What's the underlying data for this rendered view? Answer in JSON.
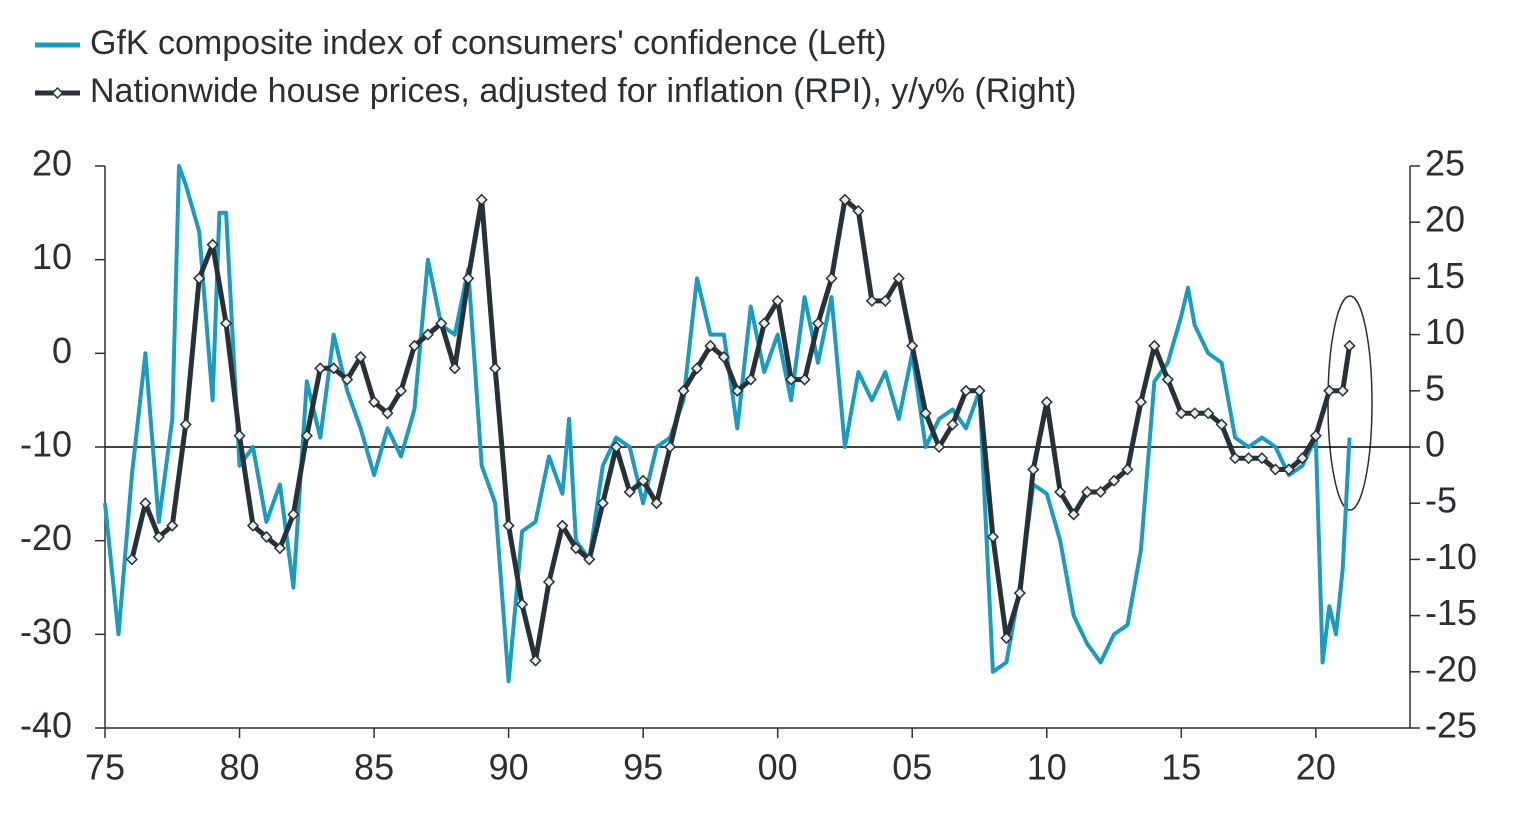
{
  "chart_data": {
    "type": "line",
    "xlim": [
      1975,
      2023.5
    ],
    "xticks": [
      {
        "value": 1975,
        "label": "75"
      },
      {
        "value": 1980,
        "label": "80"
      },
      {
        "value": 1985,
        "label": "85"
      },
      {
        "value": 1990,
        "label": "90"
      },
      {
        "value": 1995,
        "label": "95"
      },
      {
        "value": 2000,
        "label": "00"
      },
      {
        "value": 2005,
        "label": "05"
      },
      {
        "value": 2010,
        "label": "10"
      },
      {
        "value": 2015,
        "label": "15"
      },
      {
        "value": 2020,
        "label": "20"
      }
    ],
    "ylim": [
      -40,
      20
    ],
    "yticks": [
      -40,
      -30,
      -20,
      -10,
      0,
      10,
      20
    ],
    "y2lim": [
      -25,
      25
    ],
    "y2ticks": [
      -25,
      -20,
      -15,
      -10,
      -5,
      0,
      5,
      10,
      15,
      20,
      25
    ],
    "series": [
      {
        "name": "GfK composite index of consumers' confidence (Left)",
        "color": "#1a9bc0",
        "axis": "y",
        "x": [
          1975,
          1975.5,
          1976,
          1976.5,
          1977,
          1977.5,
          1977.75,
          1978,
          1978.5,
          1979,
          1979.25,
          1979.5,
          1980,
          1980.5,
          1981,
          1981.5,
          1982,
          1982.5,
          1983,
          1983.5,
          1984,
          1984.5,
          1985,
          1985.5,
          1986,
          1986.5,
          1987,
          1987.5,
          1988,
          1988.5,
          1989,
          1989.5,
          1990,
          1990.5,
          1991,
          1991.5,
          1992,
          1992.25,
          1992.5,
          1993,
          1993.5,
          1994,
          1994.5,
          1995,
          1995.5,
          1996,
          1996.5,
          1997,
          1997.5,
          1998,
          1998.5,
          1999,
          1999.5,
          2000,
          2000.5,
          2001,
          2001.5,
          2002,
          2002.5,
          2003,
          2003.5,
          2004,
          2004.5,
          2005,
          2005.5,
          2006,
          2006.5,
          2007,
          2007.5,
          2008,
          2008.5,
          2009,
          2009.5,
          2010,
          2010.5,
          2011,
          2011.5,
          2012,
          2012.5,
          2013,
          2013.5,
          2014,
          2014.5,
          2015,
          2015.25,
          2015.5,
          2016,
          2016.5,
          2017,
          2017.5,
          2018,
          2018.5,
          2019,
          2019.5,
          2020,
          2020.25,
          2020.5,
          2020.75,
          2021,
          2021.25
        ],
        "values": [
          -16,
          -30,
          -13,
          0,
          -18,
          -7,
          20,
          18,
          13,
          -5,
          15,
          15,
          -12,
          -10,
          -18,
          -14,
          -25,
          -3,
          -9,
          2,
          -4,
          -8,
          -13,
          -8,
          -11,
          -6,
          10,
          3,
          2,
          9,
          -12,
          -16,
          -35,
          -19,
          -18,
          -11,
          -15,
          -7,
          -20,
          -22,
          -12,
          -9,
          -10,
          -16,
          -10,
          -9,
          -5,
          8,
          2,
          2,
          -8,
          5,
          -2,
          2,
          -5,
          6,
          -1,
          6,
          -10,
          -2,
          -5,
          -2,
          -7,
          0,
          -10,
          -7,
          -6,
          -8,
          -4,
          -34,
          -33,
          -25,
          -14,
          -15,
          -20,
          -28,
          -31,
          -33,
          -30,
          -29,
          -21,
          -3,
          -1,
          4,
          7,
          3,
          0,
          -1,
          -9,
          -10,
          -9,
          -10,
          -13,
          -12,
          -9,
          -33,
          -27,
          -30,
          -23,
          -9
        ]
      },
      {
        "name": "Nationwide house prices, adjusted for inflation (RPI), y/y% (Right)",
        "color": "#263238",
        "axis": "y2",
        "x": [
          1976,
          1976.5,
          1977,
          1977.5,
          1978,
          1978.5,
          1979,
          1979.5,
          1980,
          1980.5,
          1981,
          1981.5,
          1982,
          1982.5,
          1983,
          1983.5,
          1984,
          1984.5,
          1985,
          1985.5,
          1986,
          1986.5,
          1987,
          1987.5,
          1988,
          1988.5,
          1989,
          1989.5,
          1990,
          1990.5,
          1991,
          1991.5,
          1992,
          1992.5,
          1993,
          1993.5,
          1994,
          1994.5,
          1995,
          1995.5,
          1996,
          1996.5,
          1997,
          1997.5,
          1998,
          1998.5,
          1999,
          1999.5,
          2000,
          2000.5,
          2001,
          2001.5,
          2002,
          2002.5,
          2003,
          2003.5,
          2004,
          2004.5,
          2005,
          2005.5,
          2006,
          2006.5,
          2007,
          2007.5,
          2008,
          2008.5,
          2009,
          2009.5,
          2010,
          2010.5,
          2011,
          2011.5,
          2012,
          2012.5,
          2013,
          2013.5,
          2014,
          2014.5,
          2015,
          2015.5,
          2016,
          2016.5,
          2017,
          2017.5,
          2018,
          2018.5,
          2019,
          2019.5,
          2020,
          2020.5,
          2021,
          2021.25
        ],
        "values": [
          -10,
          -5,
          -8,
          -7,
          2,
          15,
          18,
          11,
          1,
          -7,
          -8,
          -9,
          -6,
          1,
          7,
          7,
          6,
          8,
          4,
          3,
          5,
          9,
          10,
          11,
          7,
          15,
          22,
          7,
          -7,
          -14,
          -19,
          -12,
          -7,
          -9,
          -10,
          -5,
          0,
          -4,
          -3,
          -5,
          0,
          5,
          7,
          9,
          8,
          5,
          6,
          11,
          13,
          6,
          6,
          11,
          15,
          22,
          21,
          13,
          13,
          15,
          9,
          3,
          0,
          2,
          5,
          5,
          -8,
          -17,
          -13,
          -2,
          4,
          -4,
          -6,
          -4,
          -4,
          -3,
          -2,
          4,
          9,
          6,
          3,
          3,
          3,
          2,
          -1,
          -1,
          -1,
          -2,
          -2,
          -1,
          1,
          5,
          5,
          9
        ]
      }
    ]
  }
}
